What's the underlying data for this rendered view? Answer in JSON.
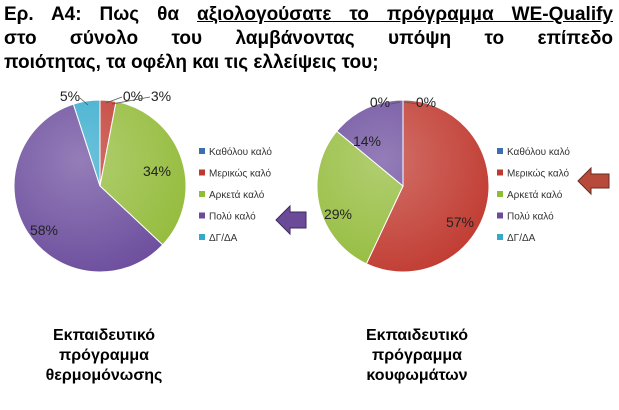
{
  "title": {
    "prefix": "Ερ. Α4: Πως θα ",
    "underlined": "αξιολογούσατε το πρόγραμμα WE-Qualify",
    "line2": "στο σύνολο του λαμβάνοντας υπόψη το επίπεδο",
    "line3": "ποιότητας, τα οφέλη και τις ελλείψεις του;"
  },
  "colors": {
    "Καθόλου καλό": "#3a6fb0",
    "Μερικώς καλό": "#c0392f",
    "Αρκετά καλό": "#93bb3a",
    "Πολύ καλό": "#6a4b9c",
    "ΔΓ/ΔΑ": "#33aacc",
    "arrow": "#6b4a98",
    "arrow_right": "#b84a3c"
  },
  "chart_data": [
    {
      "type": "pie",
      "title": "Εκπαιδευτικό πρόγραμμα θερμομόνωσης",
      "categories": [
        "Καθόλου καλό",
        "Μερικώς καλό",
        "Αρκετά καλό",
        "Πολύ καλό",
        "ΔΓ/ΔΑ"
      ],
      "values": [
        0,
        3,
        34,
        58,
        5
      ],
      "labels": [
        "0%",
        "3%",
        "34%",
        "58%",
        "5%"
      ],
      "legend_position": "right",
      "highlighted": "Πολύ καλό"
    },
    {
      "type": "pie",
      "title": "Εκπαιδευτικό πρόγραμμα κουφωμάτων",
      "categories": [
        "Καθόλου καλό",
        "Μερικώς καλό",
        "Αρκετά καλό",
        "Πολύ καλό",
        "ΔΓ/ΔΑ"
      ],
      "values": [
        0,
        57,
        29,
        14,
        0
      ],
      "labels": [
        "0%",
        "57%",
        "29%",
        "14%",
        "0%"
      ],
      "legend_position": "right",
      "highlighted": "Μερικώς καλό"
    }
  ],
  "captions": {
    "left": [
      "Εκπαιδευτικό",
      "πρόγραμμα",
      "θερμομόνωσης"
    ],
    "right": [
      "Εκπαιδευτικό",
      "πρόγραμμα",
      "κουφωμάτων"
    ]
  }
}
